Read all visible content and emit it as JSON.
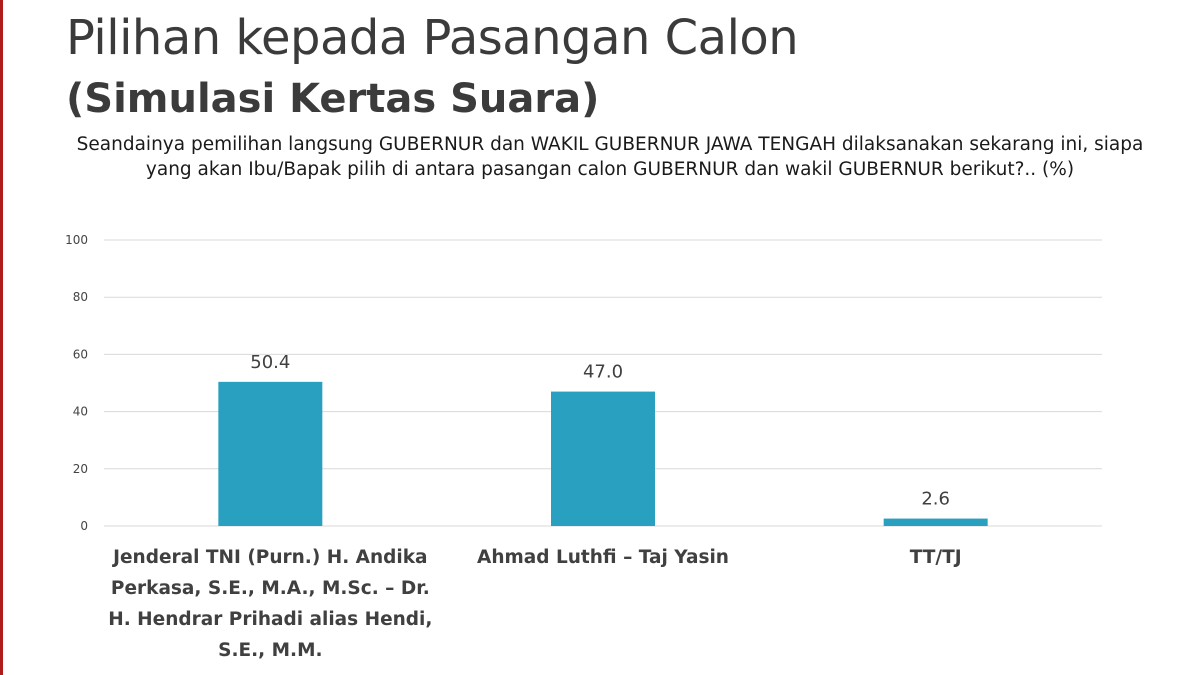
{
  "header": {
    "title": "Pilihan kepada Pasangan Calon",
    "subtitle": "(Simulasi Kertas Suara)",
    "question": "Seandainya pemilihan langsung GUBERNUR dan WAKIL GUBERNUR JAWA TENGAH dilaksanakan sekarang ini, siapa yang akan Ibu/Bapak pilih di antara pasangan calon GUBERNUR dan wakil GUBERNUR berikut?.. (%)"
  },
  "chart_data": {
    "type": "bar",
    "categories": [
      "Jenderal TNI (Purn.) H. Andika Perkasa, S.E., M.A., M.Sc. – Dr. H. Hendrar Prihadi alias Hendi, S.E., M.M.",
      "Ahmad Luthfi – Taj Yasin",
      "TT/TJ"
    ],
    "values": [
      50.4,
      47.0,
      2.6
    ],
    "value_labels": [
      "50.4",
      "47.0",
      "2.6"
    ],
    "ylim": [
      0,
      100
    ],
    "yticks": [
      0,
      20,
      40,
      60,
      80,
      100
    ],
    "grid": true,
    "legend": "none",
    "bar_color": "#2aa0c0",
    "grid_color": "#d9d9d9"
  }
}
